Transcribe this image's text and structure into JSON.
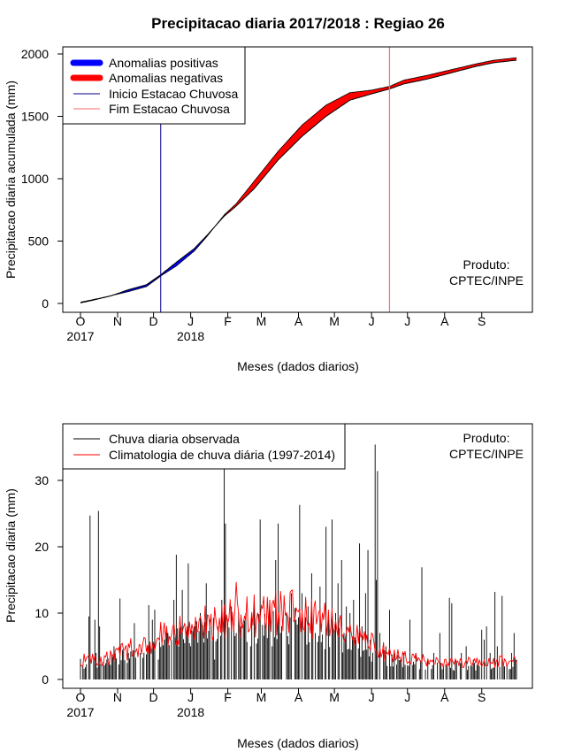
{
  "chart_data": [
    {
      "type": "area",
      "title": "Precipitacao diaria 2017/2018 : Regiao 26",
      "xlabel": "Meses (dados diarios)",
      "ylabel": "Precipitacao diaria acumulada (mm)",
      "ylim": [
        0,
        2000
      ],
      "yticks": [
        "0",
        "500",
        "1000",
        "1500",
        "2000"
      ],
      "month_labels": [
        "O",
        "N",
        "D",
        "J",
        "F",
        "M",
        "A",
        "M",
        "J",
        "J",
        "A",
        "S"
      ],
      "year_labels": [
        "2017",
        "2018"
      ],
      "legend": [
        "Anomalias positivas",
        "Anomalias negativas",
        "Inicio Estacao Chuvosa",
        "Fim Estacao Chuvosa"
      ],
      "product_label": [
        "Produto:",
        "CPTEC/INPE"
      ],
      "colors": {
        "positive": "#0000ff",
        "negative": "#ff0000",
        "onset": "#00008b",
        "end": "#ff6a6a"
      },
      "onset_day": 67,
      "end_day": 258,
      "observed_anchors": [
        [
          0,
          5
        ],
        [
          10,
          25
        ],
        [
          25,
          60
        ],
        [
          40,
          110
        ],
        [
          55,
          150
        ],
        [
          67,
          230
        ],
        [
          80,
          330
        ],
        [
          95,
          440
        ],
        [
          105,
          540
        ],
        [
          120,
          700
        ],
        [
          130,
          780
        ],
        [
          145,
          920
        ],
        [
          165,
          1150
        ],
        [
          185,
          1340
        ],
        [
          205,
          1500
        ],
        [
          225,
          1630
        ],
        [
          243,
          1680
        ],
        [
          258,
          1720
        ],
        [
          270,
          1760
        ],
        [
          290,
          1800
        ],
        [
          310,
          1850
        ],
        [
          330,
          1900
        ],
        [
          345,
          1930
        ],
        [
          364,
          1950
        ]
      ],
      "climatology_anchors": [
        [
          0,
          10
        ],
        [
          20,
          50
        ],
        [
          40,
          95
        ],
        [
          55,
          135
        ],
        [
          67,
          220
        ],
        [
          80,
          300
        ],
        [
          95,
          420
        ],
        [
          105,
          530
        ],
        [
          120,
          710
        ],
        [
          130,
          800
        ],
        [
          145,
          980
        ],
        [
          165,
          1220
        ],
        [
          185,
          1430
        ],
        [
          205,
          1590
        ],
        [
          225,
          1690
        ],
        [
          243,
          1710
        ],
        [
          258,
          1740
        ],
        [
          270,
          1790
        ],
        [
          290,
          1830
        ],
        [
          310,
          1875
        ],
        [
          330,
          1920
        ],
        [
          345,
          1950
        ],
        [
          364,
          1970
        ]
      ]
    },
    {
      "type": "line",
      "xlabel": "Meses (dados diarios)",
      "ylabel": "Precipitacao diaria (mm)",
      "ylim": [
        0,
        38
      ],
      "yticks": [
        "0",
        "10",
        "20",
        "30"
      ],
      "month_labels": [
        "O",
        "N",
        "D",
        "J",
        "F",
        "M",
        "A",
        "M",
        "J",
        "J",
        "A",
        "S"
      ],
      "year_labels": [
        "2017",
        "2018"
      ],
      "legend": [
        "Chuva diaria observada",
        "Climatologia de chuva diária (1997-2014)"
      ],
      "product_label": [
        "Produto:",
        "CPTEC/INPE"
      ],
      "colors": {
        "observed": "#000000",
        "climatology": "#ff0000"
      },
      "series": [
        {
          "name": "Chuva diaria observada",
          "peaks": [
            [
              7,
              9.5
            ],
            [
              8,
              24.7
            ],
            [
              12,
              9
            ],
            [
              13,
              4
            ],
            [
              15,
              25.4
            ],
            [
              16,
              8
            ],
            [
              22,
              3
            ],
            [
              28,
              5
            ],
            [
              33,
              12.2
            ],
            [
              40,
              4
            ],
            [
              45,
              8.5
            ],
            [
              50,
              4
            ],
            [
              57,
              11.2
            ],
            [
              60,
              9
            ],
            [
              62,
              10.5
            ],
            [
              65,
              3
            ],
            [
              70,
              6
            ],
            [
              73,
              7
            ],
            [
              78,
              12
            ],
            [
              80,
              18.8
            ],
            [
              82,
              5
            ],
            [
              84,
              8
            ],
            [
              85,
              13.5
            ],
            [
              88,
              7
            ],
            [
              90,
              17.5
            ],
            [
              92,
              5
            ],
            [
              95,
              8
            ],
            [
              100,
              10
            ],
            [
              105,
              14.5
            ],
            [
              108,
              9
            ],
            [
              110,
              6
            ],
            [
              112,
              3
            ],
            [
              115,
              8
            ],
            [
              118,
              12
            ],
            [
              120,
              34.8
            ],
            [
              121,
              23.5
            ],
            [
              123,
              9
            ],
            [
              126,
              11
            ],
            [
              130,
              7
            ],
            [
              134,
              8
            ],
            [
              138,
              10
            ],
            [
              142,
              5
            ],
            [
              145,
              11
            ],
            [
              150,
              24.1
            ],
            [
              155,
              8
            ],
            [
              158,
              12
            ],
            [
              160,
              5
            ],
            [
              163,
              18
            ],
            [
              165,
              23.5
            ],
            [
              167,
              7
            ],
            [
              172,
              10
            ],
            [
              176,
              13
            ],
            [
              180,
              9
            ],
            [
              183,
              26.3
            ],
            [
              185,
              13
            ],
            [
              187,
              8
            ],
            [
              190,
              11
            ],
            [
              193,
              16
            ],
            [
              196,
              7
            ],
            [
              200,
              14
            ],
            [
              205,
              23
            ],
            [
              207,
              9
            ],
            [
              210,
              24.1
            ],
            [
              213,
              10
            ],
            [
              215,
              14.5
            ],
            [
              218,
              18
            ],
            [
              220,
              7
            ],
            [
              222,
              11
            ],
            [
              225,
              10
            ],
            [
              228,
              12
            ],
            [
              230,
              6
            ],
            [
              233,
              20.5
            ],
            [
              235,
              8
            ],
            [
              238,
              13
            ],
            [
              240,
              19.5
            ],
            [
              242,
              6
            ],
            [
              246,
              35.4
            ],
            [
              247,
              15
            ],
            [
              248,
              31.4
            ],
            [
              250,
              7
            ],
            [
              255,
              5
            ],
            [
              258,
              10.5
            ],
            [
              262,
              4
            ],
            [
              267,
              3
            ],
            [
              270,
              4
            ],
            [
              275,
              9
            ],
            [
              280,
              4
            ],
            [
              285,
              16.9
            ],
            [
              290,
              3
            ],
            [
              295,
              4
            ],
            [
              300,
              7
            ],
            [
              303,
              2
            ],
            [
              308,
              12.3
            ],
            [
              310,
              11.5
            ],
            [
              313,
              3
            ],
            [
              318,
              4
            ],
            [
              322,
              5
            ],
            [
              328,
              3
            ],
            [
              335,
              7.5
            ],
            [
              337,
              6
            ],
            [
              339,
              8
            ],
            [
              342,
              4
            ],
            [
              346,
              13.2
            ],
            [
              348,
              5
            ],
            [
              352,
              12.6
            ],
            [
              356,
              2
            ],
            [
              360,
              4
            ],
            [
              362,
              7
            ],
            [
              363,
              3
            ]
          ]
        },
        {
          "name": "Climatologia de chuva diária (1997-2014)",
          "anchors": [
            [
              0,
              3
            ],
            [
              20,
              3
            ],
            [
              40,
              4.5
            ],
            [
              60,
              6
            ],
            [
              80,
              7.5
            ],
            [
              100,
              8.5
            ],
            [
              120,
              9
            ],
            [
              140,
              9.5
            ],
            [
              160,
              10
            ],
            [
              180,
              10
            ],
            [
              200,
              9
            ],
            [
              220,
              7.5
            ],
            [
              240,
              5.5
            ],
            [
              260,
              3.5
            ],
            [
              280,
              3
            ],
            [
              300,
              2.5
            ],
            [
              320,
              2.5
            ],
            [
              340,
              2.5
            ],
            [
              364,
              3
            ]
          ],
          "notable_points": [
            [
              130,
              14.7
            ],
            [
              177,
              13.5
            ],
            [
              243,
              7
            ]
          ]
        }
      ]
    }
  ]
}
